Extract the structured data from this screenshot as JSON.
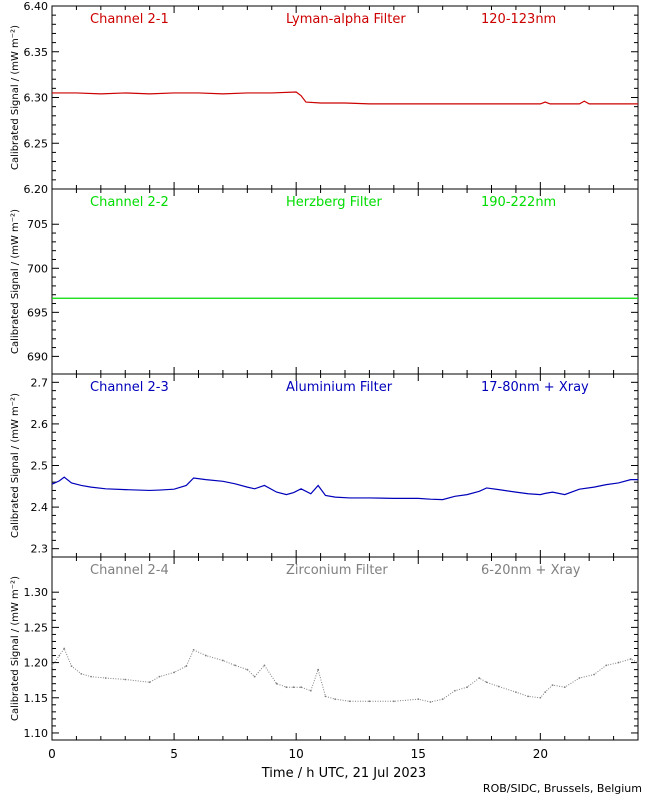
{
  "chart_data": [
    {
      "type": "line",
      "channel": "Channel 2-1",
      "filter": "Lyman-alpha Filter",
      "band": "120-123nm",
      "color": "#cc0000",
      "ylabel": "Calibrated Signal / (mW m⁻²)",
      "ylim": [
        6.2,
        6.4
      ],
      "yticks": [
        "6.20",
        "6.25",
        "6.30",
        "6.35",
        "6.40"
      ],
      "series": [
        {
          "x": [
            0,
            0.5,
            1,
            2,
            3,
            4,
            5,
            6,
            7,
            8,
            9,
            10,
            10.2,
            10.4,
            11,
            12,
            13,
            14,
            15,
            16,
            17,
            18,
            19,
            20,
            20.2,
            20.4,
            21,
            21.6,
            21.8,
            22,
            23,
            24
          ],
          "y": [
            6.305,
            6.305,
            6.305,
            6.304,
            6.305,
            6.304,
            6.305,
            6.305,
            6.304,
            6.305,
            6.305,
            6.306,
            6.302,
            6.295,
            6.294,
            6.294,
            6.293,
            6.293,
            6.293,
            6.293,
            6.293,
            6.293,
            6.293,
            6.293,
            6.295,
            6.293,
            6.293,
            6.293,
            6.296,
            6.293,
            6.293,
            6.293
          ]
        }
      ]
    },
    {
      "type": "line",
      "channel": "Channel 2-2",
      "filter": "Herzberg Filter",
      "band": "190-222nm",
      "color": "#00dd00",
      "ylabel": "Calibrated Signal / (mW m⁻²)",
      "ylim": [
        688,
        709
      ],
      "yticks": [
        "690",
        "695",
        "700",
        "705"
      ],
      "series": [
        {
          "x": [
            0,
            2,
            4,
            6,
            8,
            10,
            12,
            14,
            16,
            18,
            20,
            22,
            24
          ],
          "y": [
            696.6,
            696.6,
            696.6,
            696.6,
            696.6,
            696.6,
            696.6,
            696.6,
            696.6,
            696.6,
            696.6,
            696.6,
            696.6
          ]
        }
      ]
    },
    {
      "type": "line",
      "channel": "Channel 2-3",
      "filter": "Aluminium Filter",
      "band": "17-80nm + Xray",
      "color": "#0000bb",
      "ylabel": "Calibrated Signal / (mW m⁻²)",
      "ylim": [
        2.28,
        2.72
      ],
      "yticks": [
        "2.3",
        "2.4",
        "2.5",
        "2.6",
        "2.7"
      ],
      "series": [
        {
          "x": [
            0,
            0.3,
            0.5,
            0.8,
            1.2,
            1.6,
            2.2,
            3,
            4,
            4.4,
            5,
            5.5,
            5.8,
            6.3,
            7,
            7.5,
            8,
            8.3,
            8.7,
            9.2,
            9.6,
            9.9,
            10.2,
            10.6,
            10.9,
            11.2,
            11.6,
            12.2,
            13,
            14,
            15,
            15.5,
            16,
            16.5,
            17,
            17.5,
            17.8,
            18.3,
            19,
            19.5,
            20,
            20.2,
            20.5,
            21,
            21.6,
            22.2,
            22.7,
            23.2,
            23.7,
            24
          ],
          "y": [
            2.455,
            2.463,
            2.472,
            2.458,
            2.452,
            2.448,
            2.444,
            2.442,
            2.44,
            2.441,
            2.443,
            2.452,
            2.47,
            2.466,
            2.462,
            2.456,
            2.448,
            2.444,
            2.452,
            2.436,
            2.43,
            2.435,
            2.444,
            2.432,
            2.452,
            2.428,
            2.424,
            2.422,
            2.422,
            2.421,
            2.421,
            2.419,
            2.418,
            2.426,
            2.43,
            2.438,
            2.446,
            2.442,
            2.436,
            2.432,
            2.43,
            2.433,
            2.436,
            2.43,
            2.443,
            2.448,
            2.454,
            2.458,
            2.466,
            2.466
          ]
        }
      ]
    },
    {
      "type": "scatter",
      "channel": "Channel 2-4",
      "filter": "Zirconium Filter",
      "band": "6-20nm + Xray",
      "color": "#808080",
      "ylabel": "Calibrated Signal / (mW m⁻²)",
      "ylim": [
        1.09,
        1.35
      ],
      "yticks": [
        "1.10",
        "1.15",
        "1.20",
        "1.25",
        "1.30"
      ],
      "series": [
        {
          "x": [
            0,
            0.3,
            0.5,
            0.8,
            1.2,
            1.6,
            2.2,
            3,
            4,
            4.4,
            5,
            5.5,
            5.8,
            6.3,
            7,
            7.5,
            8,
            8.3,
            8.7,
            9.2,
            9.6,
            9.9,
            10.2,
            10.6,
            10.9,
            11.2,
            11.6,
            12.2,
            13,
            14,
            15,
            15.5,
            16,
            16.5,
            17,
            17.5,
            17.8,
            18.3,
            19,
            19.5,
            20,
            20.2,
            20.5,
            21,
            21.6,
            22.2,
            22.7,
            23.2,
            23.7,
            24
          ],
          "y": [
            1.195,
            1.21,
            1.22,
            1.195,
            1.184,
            1.18,
            1.178,
            1.176,
            1.172,
            1.18,
            1.186,
            1.195,
            1.218,
            1.21,
            1.203,
            1.196,
            1.19,
            1.18,
            1.196,
            1.17,
            1.165,
            1.165,
            1.165,
            1.16,
            1.19,
            1.152,
            1.148,
            1.145,
            1.145,
            1.145,
            1.148,
            1.144,
            1.148,
            1.16,
            1.165,
            1.178,
            1.172,
            1.166,
            1.158,
            1.152,
            1.15,
            1.158,
            1.168,
            1.165,
            1.178,
            1.183,
            1.196,
            1.2,
            1.205,
            1.2
          ]
        }
      ]
    }
  ],
  "xaxis": {
    "xlim": [
      0,
      24
    ],
    "ticks": [
      "0",
      "5",
      "10",
      "15",
      "20"
    ],
    "tick_values": [
      0,
      5,
      10,
      15,
      20
    ],
    "label": "Time / h UTC, 21 Jul 2023"
  },
  "credit": "ROB/SIDC, Brussels, Belgium"
}
